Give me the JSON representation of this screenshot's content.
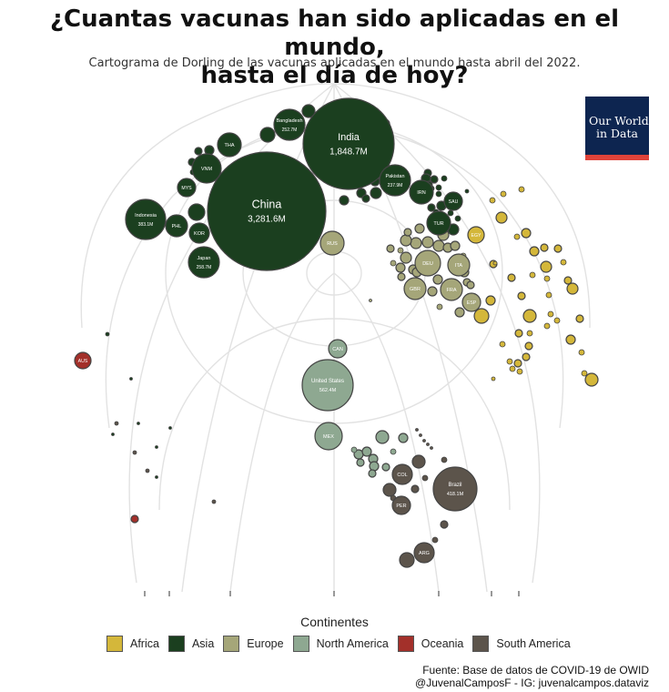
{
  "title_line1": "¿Cuantas vacunas han sido aplicadas en el mundo,",
  "title_line2": "hasta el día de hoy?",
  "subtitle": "Cartograma de Dorling de las vacunas aplicadas en el mundo hasta abril del 2022.",
  "owid_logo": {
    "line1": "Our World",
    "line2": "in Data",
    "bg": "#0d2550",
    "accent": "#e0433a"
  },
  "legend": {
    "title": "Continentes",
    "items": [
      {
        "label": "Africa",
        "color": "#d4b73a"
      },
      {
        "label": "Asia",
        "color": "#1b3f1f"
      },
      {
        "label": "Europe",
        "color": "#a5a679"
      },
      {
        "label": "North America",
        "color": "#8ea891"
      },
      {
        "label": "Oceania",
        "color": "#a3302a"
      },
      {
        "label": "South America",
        "color": "#5c544b"
      }
    ]
  },
  "source_line1": "Fuente: Base de datos de COVID-19 de OWID",
  "source_line2": "@JuvenalCamposF - IG: juvenalcampos.dataviz",
  "chart_data": {
    "type": "dorling cartogram",
    "unit": "M doses",
    "labeled_countries": [
      {
        "code": "China",
        "name": "China",
        "continent": "Asia",
        "value": 3281.6,
        "value_label": "3,281.6M"
      },
      {
        "code": "India",
        "name": "India",
        "continent": "Asia",
        "value": 1848.7,
        "value_label": "1,848.7M"
      },
      {
        "code": "United States",
        "name": "United States",
        "continent": "North America",
        "value": 562.4,
        "value_label": "562.4M"
      },
      {
        "code": "Brazil",
        "name": "Brazil",
        "continent": "South America",
        "value": 418.1,
        "value_label": "418.1M"
      },
      {
        "code": "Indonesia",
        "name": "Indonesia",
        "continent": "Asia",
        "value": 383.1,
        "value_label": "383.1M"
      },
      {
        "code": "Japan",
        "name": "Japan",
        "continent": "Asia",
        "value": 258.7,
        "value_label": "258.7M"
      },
      {
        "code": "Bangladesh",
        "name": "Bangladesh",
        "continent": "Asia",
        "value": 252.7,
        "value_label": "252.7M"
      },
      {
        "code": "Pakistan",
        "name": "Pakistan",
        "continent": "Asia",
        "value": 237.9,
        "value_label": "237.9M"
      },
      {
        "code": "VNM",
        "continent": "Asia"
      },
      {
        "code": "THA",
        "continent": "Asia"
      },
      {
        "code": "MYS",
        "continent": "Asia"
      },
      {
        "code": "PHL",
        "continent": "Asia"
      },
      {
        "code": "KOR",
        "continent": "Asia"
      },
      {
        "code": "IRN",
        "continent": "Asia"
      },
      {
        "code": "TUR",
        "continent": "Asia"
      },
      {
        "code": "SAU",
        "continent": "Asia"
      },
      {
        "code": "RUS",
        "continent": "Europe"
      },
      {
        "code": "DEU",
        "continent": "Europe"
      },
      {
        "code": "ITA",
        "continent": "Europe"
      },
      {
        "code": "GBR",
        "continent": "Europe"
      },
      {
        "code": "FRA",
        "continent": "Europe"
      },
      {
        "code": "ESP",
        "continent": "Europe"
      },
      {
        "code": "EGY",
        "continent": "Africa"
      },
      {
        "code": "CAN",
        "continent": "North America"
      },
      {
        "code": "MEX",
        "continent": "North America"
      },
      {
        "code": "AUS",
        "continent": "Oceania"
      },
      {
        "code": "COL",
        "continent": "South America"
      },
      {
        "code": "PER",
        "continent": "South America"
      },
      {
        "code": "ARG",
        "continent": "South America"
      }
    ]
  }
}
